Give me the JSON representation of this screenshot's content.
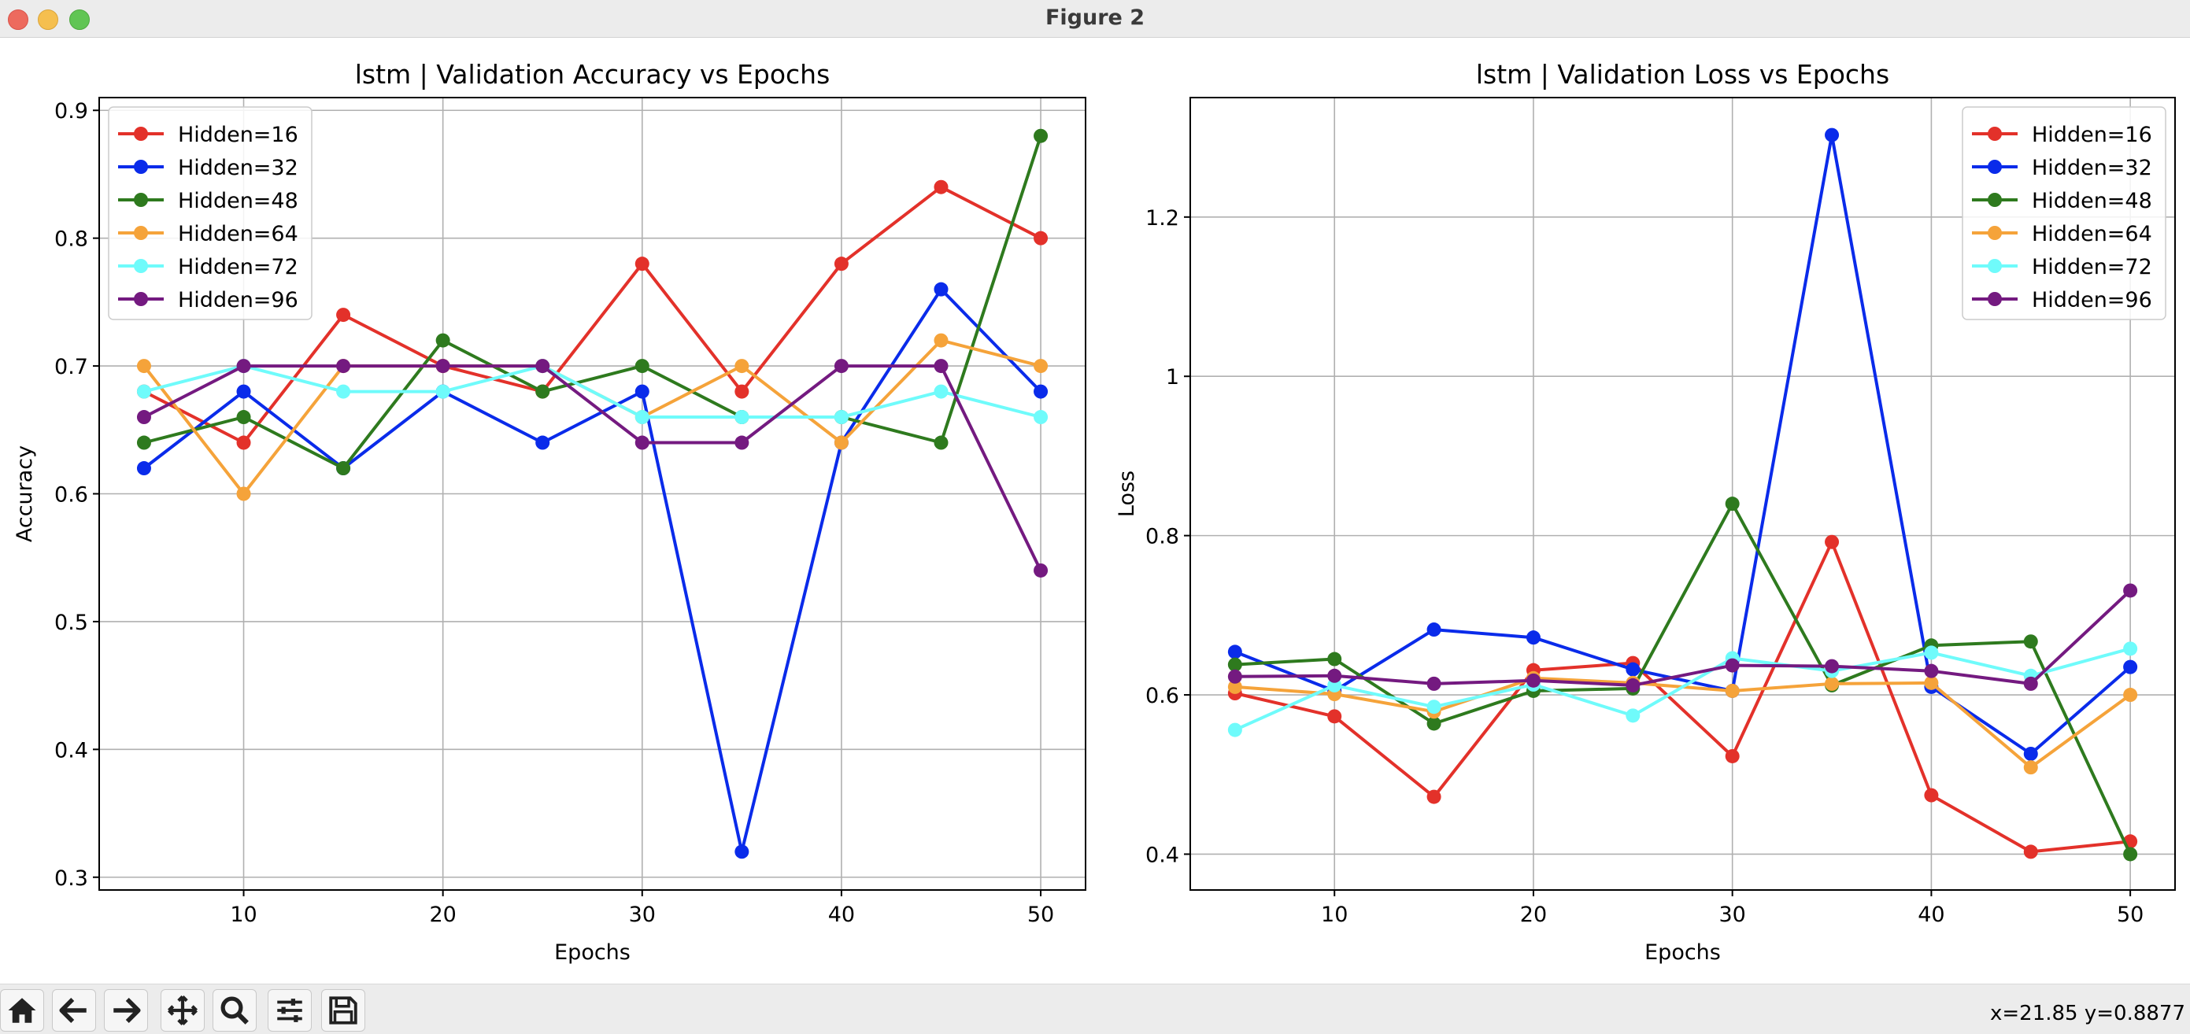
{
  "window": {
    "title": "Figure 2"
  },
  "toolbar": {
    "buttons": [
      "home-icon",
      "back-arrow-icon",
      "forward-arrow-icon",
      "pan-icon",
      "zoom-icon",
      "configure-subplots-icon",
      "save-icon"
    ],
    "coordinates": "x=21.85 y=0.8877"
  },
  "colors": {
    "Hidden=16": "#e3312a",
    "Hidden=32": "#0a2bea",
    "Hidden=48": "#2e7a1e",
    "Hidden=64": "#f5a33a",
    "Hidden=72": "#6ffbfb",
    "Hidden=96": "#741a80"
  },
  "chart_data": [
    {
      "type": "line",
      "title": "lstm | Validation Accuracy vs Epochs",
      "xlabel": "Epochs",
      "ylabel": "Accuracy",
      "x": [
        5,
        10,
        15,
        20,
        25,
        30,
        35,
        40,
        45,
        50
      ],
      "xlim": [
        2.75,
        52.25
      ],
      "ylim": [
        0.29,
        0.91
      ],
      "xticks": [
        10,
        20,
        30,
        40,
        50
      ],
      "yticks": [
        0.3,
        0.4,
        0.5,
        0.6,
        0.7,
        0.8,
        0.9
      ],
      "grid": true,
      "legend_position": "upper-left",
      "series": [
        {
          "name": "Hidden=16",
          "values": [
            0.68,
            0.64,
            0.74,
            0.7,
            0.68,
            0.78,
            0.68,
            0.78,
            0.84,
            0.8
          ]
        },
        {
          "name": "Hidden=32",
          "values": [
            0.62,
            0.68,
            0.62,
            0.68,
            0.64,
            0.68,
            0.32,
            0.64,
            0.76,
            0.68
          ]
        },
        {
          "name": "Hidden=48",
          "values": [
            0.64,
            0.66,
            0.62,
            0.72,
            0.68,
            0.7,
            0.66,
            0.66,
            0.64,
            0.88
          ]
        },
        {
          "name": "Hidden=64",
          "values": [
            0.7,
            0.6,
            0.7,
            0.7,
            0.7,
            0.66,
            0.7,
            0.64,
            0.72,
            0.7
          ]
        },
        {
          "name": "Hidden=72",
          "values": [
            0.68,
            0.7,
            0.68,
            0.68,
            0.7,
            0.66,
            0.66,
            0.66,
            0.68,
            0.66
          ]
        },
        {
          "name": "Hidden=96",
          "values": [
            0.66,
            0.7,
            0.7,
            0.7,
            0.7,
            0.64,
            0.64,
            0.7,
            0.7,
            0.54
          ]
        }
      ]
    },
    {
      "type": "line",
      "title": "lstm | Validation Loss vs Epochs",
      "xlabel": "Epochs",
      "ylabel": "Loss",
      "x": [
        5,
        10,
        15,
        20,
        25,
        30,
        35,
        40,
        45,
        50
      ],
      "xlim": [
        2.75,
        52.25
      ],
      "ylim": [
        0.355,
        1.35
      ],
      "xticks": [
        10,
        20,
        30,
        40,
        50
      ],
      "yticks": [
        0.4,
        0.6,
        0.8,
        1.0,
        1.2
      ],
      "grid": true,
      "legend_position": "upper-right",
      "series": [
        {
          "name": "Hidden=16",
          "values": [
            0.602,
            0.573,
            0.472,
            0.631,
            0.64,
            0.523,
            0.792,
            0.474,
            0.403,
            0.416
          ]
        },
        {
          "name": "Hidden=32",
          "values": [
            0.654,
            0.605,
            0.682,
            0.672,
            0.632,
            0.605,
            1.303,
            0.61,
            0.526,
            0.635
          ]
        },
        {
          "name": "Hidden=48",
          "values": [
            0.638,
            0.645,
            0.564,
            0.605,
            0.608,
            0.84,
            0.612,
            0.662,
            0.667,
            0.4
          ]
        },
        {
          "name": "Hidden=64",
          "values": [
            0.61,
            0.601,
            0.579,
            0.621,
            0.615,
            0.605,
            0.614,
            0.615,
            0.509,
            0.6
          ]
        },
        {
          "name": "Hidden=72",
          "values": [
            0.556,
            0.612,
            0.585,
            0.613,
            0.574,
            0.646,
            0.63,
            0.653,
            0.624,
            0.658
          ]
        },
        {
          "name": "Hidden=96",
          "values": [
            0.623,
            0.624,
            0.614,
            0.618,
            0.612,
            0.637,
            0.636,
            0.63,
            0.614,
            0.731
          ]
        }
      ]
    }
  ]
}
